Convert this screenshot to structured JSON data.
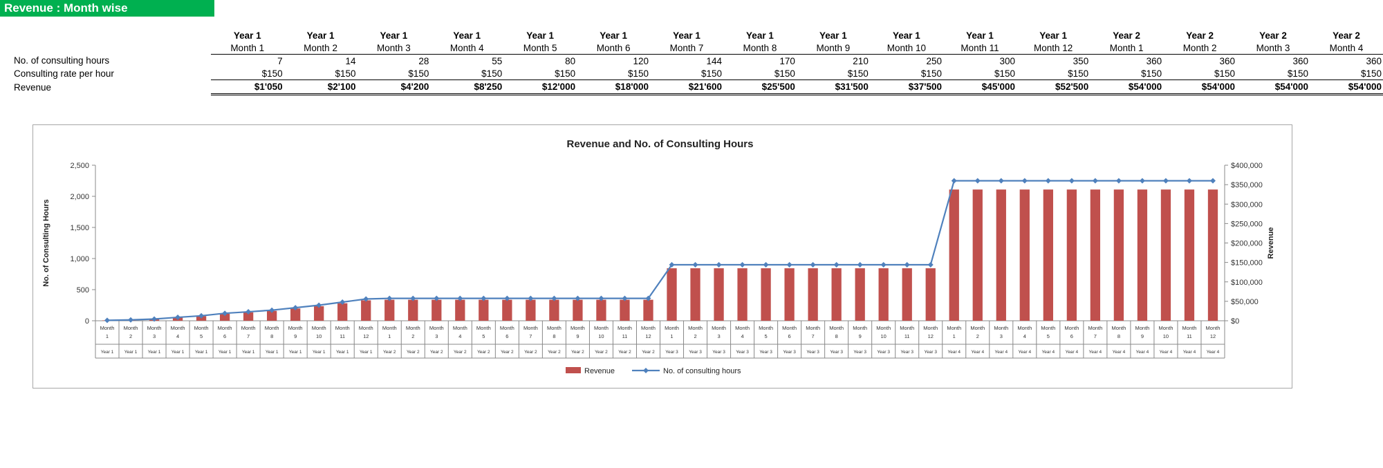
{
  "banner": {
    "title": "Revenue : Month wise"
  },
  "table": {
    "columns": [
      {
        "year": "Year 1",
        "month": "Month 1"
      },
      {
        "year": "Year 1",
        "month": "Month 2"
      },
      {
        "year": "Year 1",
        "month": "Month 3"
      },
      {
        "year": "Year 1",
        "month": "Month 4"
      },
      {
        "year": "Year 1",
        "month": "Month 5"
      },
      {
        "year": "Year 1",
        "month": "Month 6"
      },
      {
        "year": "Year 1",
        "month": "Month 7"
      },
      {
        "year": "Year 1",
        "month": "Month 8"
      },
      {
        "year": "Year 1",
        "month": "Month 9"
      },
      {
        "year": "Year 1",
        "month": "Month 10"
      },
      {
        "year": "Year 1",
        "month": "Month 11"
      },
      {
        "year": "Year 1",
        "month": "Month 12"
      },
      {
        "year": "Year 2",
        "month": "Month 1"
      },
      {
        "year": "Year 2",
        "month": "Month 2"
      },
      {
        "year": "Year 2",
        "month": "Month 3"
      },
      {
        "year": "Year 2",
        "month": "Month 4"
      }
    ],
    "rows": [
      {
        "label": "No. of consulting hours",
        "cells": [
          "7",
          "14",
          "28",
          "55",
          "80",
          "120",
          "144",
          "170",
          "210",
          "250",
          "300",
          "350",
          "360",
          "360",
          "360",
          "360"
        ]
      },
      {
        "label": "Consulting rate per hour",
        "cells": [
          "$150",
          "$150",
          "$150",
          "$150",
          "$150",
          "$150",
          "$150",
          "$150",
          "$150",
          "$150",
          "$150",
          "$150",
          "$150",
          "$150",
          "$150",
          "$150"
        ]
      },
      {
        "label": "Revenue",
        "cells": [
          "$1'050",
          "$2'100",
          "$4'200",
          "$8'250",
          "$12'000",
          "$18'000",
          "$21'600",
          "$25'500",
          "$31'500",
          "$37'500",
          "$45'000",
          "$52'500",
          "$54'000",
          "$54'000",
          "$54'000",
          "$54'000"
        ]
      }
    ]
  },
  "chart_data": {
    "type": "bar",
    "title": "Revenue and No. of Consulting Hours",
    "ylabel": "No. of Consulting  Hours",
    "y2label": "Revenue",
    "ylim": [
      0,
      2500
    ],
    "y2lim": [
      0,
      400000
    ],
    "yticks": [
      "0",
      "500",
      "1,000",
      "1,500",
      "2,000",
      "2,500"
    ],
    "y2ticks": [
      "$0",
      "$50,000",
      "$100,000",
      "$150,000",
      "$200,000",
      "$250,000",
      "$300,000",
      "$350,000",
      "$400,000"
    ],
    "categories": [
      {
        "month": "Month",
        "num": "1",
        "year": "Year 1"
      },
      {
        "month": "Month",
        "num": "2",
        "year": "Year 1"
      },
      {
        "month": "Month",
        "num": "3",
        "year": "Year 1"
      },
      {
        "month": "Month",
        "num": "4",
        "year": "Year 1"
      },
      {
        "month": "Month",
        "num": "5",
        "year": "Year 1"
      },
      {
        "month": "Month",
        "num": "6",
        "year": "Year 1"
      },
      {
        "month": "Month",
        "num": "7",
        "year": "Year 1"
      },
      {
        "month": "Month",
        "num": "8",
        "year": "Year 1"
      },
      {
        "month": "Month",
        "num": "9",
        "year": "Year 1"
      },
      {
        "month": "Month",
        "num": "10",
        "year": "Year 1"
      },
      {
        "month": "Month",
        "num": "11",
        "year": "Year 1"
      },
      {
        "month": "Month",
        "num": "12",
        "year": "Year 1"
      },
      {
        "month": "Month",
        "num": "1",
        "year": "Year 2"
      },
      {
        "month": "Month",
        "num": "2",
        "year": "Year 2"
      },
      {
        "month": "Month",
        "num": "3",
        "year": "Year 2"
      },
      {
        "month": "Month",
        "num": "4",
        "year": "Year 2"
      },
      {
        "month": "Month",
        "num": "5",
        "year": "Year 2"
      },
      {
        "month": "Month",
        "num": "6",
        "year": "Year 2"
      },
      {
        "month": "Month",
        "num": "7",
        "year": "Year 2"
      },
      {
        "month": "Month",
        "num": "8",
        "year": "Year 2"
      },
      {
        "month": "Month",
        "num": "9",
        "year": "Year 2"
      },
      {
        "month": "Month",
        "num": "10",
        "year": "Year 2"
      },
      {
        "month": "Month",
        "num": "11",
        "year": "Year 2"
      },
      {
        "month": "Month",
        "num": "12",
        "year": "Year 2"
      },
      {
        "month": "Month",
        "num": "1",
        "year": "Year 3"
      },
      {
        "month": "Month",
        "num": "2",
        "year": "Year 3"
      },
      {
        "month": "Month",
        "num": "3",
        "year": "Year 3"
      },
      {
        "month": "Month",
        "num": "4",
        "year": "Year 3"
      },
      {
        "month": "Month",
        "num": "5",
        "year": "Year 3"
      },
      {
        "month": "Month",
        "num": "6",
        "year": "Year 3"
      },
      {
        "month": "Month",
        "num": "7",
        "year": "Year 3"
      },
      {
        "month": "Month",
        "num": "8",
        "year": "Year 3"
      },
      {
        "month": "Month",
        "num": "9",
        "year": "Year 3"
      },
      {
        "month": "Month",
        "num": "10",
        "year": "Year 3"
      },
      {
        "month": "Month",
        "num": "11",
        "year": "Year 3"
      },
      {
        "month": "Month",
        "num": "12",
        "year": "Year 3"
      },
      {
        "month": "Month",
        "num": "1",
        "year": "Year 4"
      },
      {
        "month": "Month",
        "num": "2",
        "year": "Year 4"
      },
      {
        "month": "Month",
        "num": "3",
        "year": "Year 4"
      },
      {
        "month": "Month",
        "num": "4",
        "year": "Year 4"
      },
      {
        "month": "Month",
        "num": "5",
        "year": "Year 4"
      },
      {
        "month": "Month",
        "num": "6",
        "year": "Year 4"
      },
      {
        "month": "Month",
        "num": "7",
        "year": "Year 4"
      },
      {
        "month": "Month",
        "num": "8",
        "year": "Year 4"
      },
      {
        "month": "Month",
        "num": "9",
        "year": "Year 4"
      },
      {
        "month": "Month",
        "num": "10",
        "year": "Year 4"
      },
      {
        "month": "Month",
        "num": "11",
        "year": "Year 4"
      },
      {
        "month": "Month",
        "num": "12",
        "year": "Year 4"
      }
    ],
    "series": [
      {
        "name": "Revenue",
        "type": "bar",
        "axis": "right",
        "color": "#c0504d",
        "values": [
          1050,
          2100,
          4200,
          8250,
          12000,
          18000,
          21600,
          25500,
          31500,
          37500,
          45000,
          52500,
          54000,
          54000,
          54000,
          54000,
          54000,
          54000,
          54000,
          54000,
          54000,
          54000,
          54000,
          54000,
          135000,
          135000,
          135000,
          135000,
          135000,
          135000,
          135000,
          135000,
          135000,
          135000,
          135000,
          135000,
          337500,
          337500,
          337500,
          337500,
          337500,
          337500,
          337500,
          337500,
          337500,
          337500,
          337500,
          337500
        ]
      },
      {
        "name": "No. of consulting  hours",
        "type": "line",
        "axis": "left",
        "color": "#4f81bd",
        "values": [
          7,
          14,
          28,
          55,
          80,
          120,
          144,
          170,
          210,
          250,
          300,
          350,
          360,
          360,
          360,
          360,
          360,
          360,
          360,
          360,
          360,
          360,
          360,
          360,
          900,
          900,
          900,
          900,
          900,
          900,
          900,
          900,
          900,
          900,
          900,
          900,
          2250,
          2250,
          2250,
          2250,
          2250,
          2250,
          2250,
          2250,
          2250,
          2250,
          2250,
          2250
        ]
      }
    ],
    "legend": "bottom",
    "grid": false
  }
}
